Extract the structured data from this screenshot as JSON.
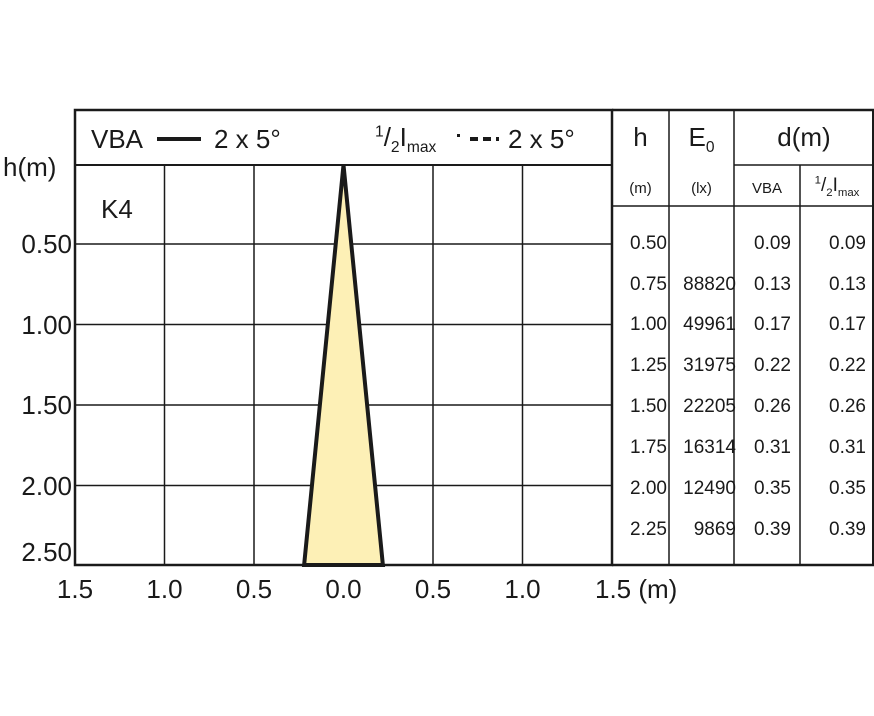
{
  "chart_data": {
    "type": "line",
    "legend": {
      "vba_label": "VBA",
      "vba_angle": "2 x 5°",
      "half_sup": "1",
      "half_sub": "2",
      "half_main": "I",
      "half_sub2": "max",
      "half_angle": "2 x 5°"
    },
    "product_label": "K4",
    "ylabel": "h(m)",
    "y_ticks": [
      "0.50",
      "1.00",
      "1.50",
      "2.00",
      "2.50"
    ],
    "x_ticks": [
      "1.5",
      "1.0",
      "0.5",
      "0.0",
      "0.5",
      "1.0",
      "1.5 (m)"
    ],
    "xlim": [
      -1.5,
      1.5
    ],
    "ylim": [
      0,
      2.5
    ],
    "cone": {
      "apex": [
        0,
        0
      ],
      "base_h": 2.5,
      "half_width_at_base": 0.22,
      "fill": "#fdf0b6",
      "stroke": "#1a1a1a"
    },
    "table": {
      "col_h": "h",
      "col_e_main": "E",
      "col_e_sub": "0",
      "col_d": "d(m)",
      "unit_h": "(m)",
      "unit_e": "(lx)",
      "unit_vba": "VBA",
      "unit_half_sup": "1",
      "unit_half_sub": "2",
      "unit_half_main": "I",
      "unit_half_sub2": "max",
      "rows": [
        {
          "h": "0.50",
          "e": "",
          "vba": "0.09",
          "half": "0.09"
        },
        {
          "h": "0.75",
          "e": "88820",
          "vba": "0.13",
          "half": "0.13"
        },
        {
          "h": "1.00",
          "e": "49961",
          "vba": "0.17",
          "half": "0.17"
        },
        {
          "h": "1.25",
          "e": "31975",
          "vba": "0.22",
          "half": "0.22"
        },
        {
          "h": "1.50",
          "e": "22205",
          "vba": "0.26",
          "half": "0.26"
        },
        {
          "h": "1.75",
          "e": "16314",
          "vba": "0.31",
          "half": "0.31"
        },
        {
          "h": "2.00",
          "e": "12490",
          "vba": "0.35",
          "half": "0.35"
        },
        {
          "h": "2.25",
          "e": "9869",
          "vba": "0.39",
          "half": "0.39"
        }
      ]
    }
  }
}
